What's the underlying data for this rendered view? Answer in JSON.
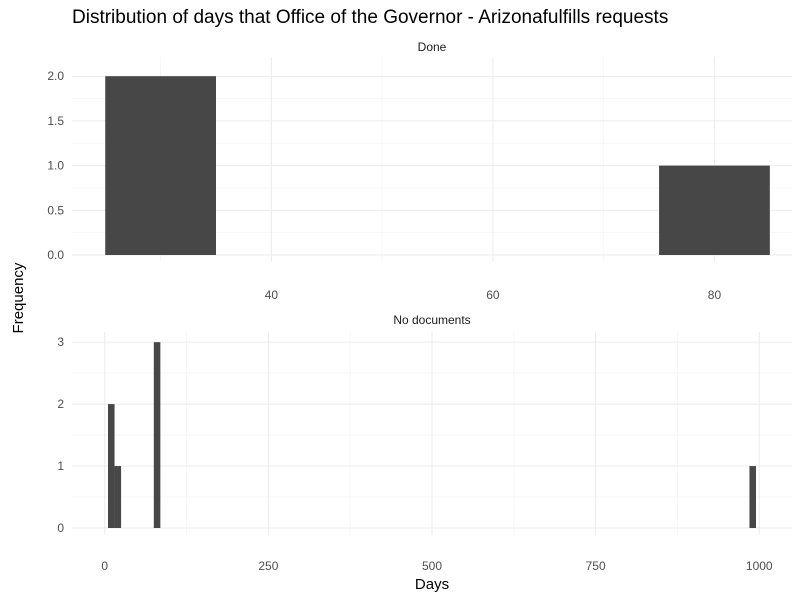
{
  "chart_data": {
    "type": "bar",
    "title": "Distribution of days that Office of the Governor - Arizonafulfills requests",
    "xlabel": "Days",
    "ylabel": "Frequency",
    "grid": true,
    "colors": {
      "bar": "#474747",
      "grid_major": "#ebebeb",
      "grid_minor": "#f5f5f5"
    },
    "facets": [
      {
        "label": "Done",
        "xlim": [
          22,
          87
        ],
        "ylim": [
          0,
          2.1
        ],
        "x_ticks": [
          40,
          60,
          80
        ],
        "x_tick_labels": [
          "40",
          "60",
          "80"
        ],
        "y_ticks": [
          0,
          0.5,
          1,
          1.5,
          2
        ],
        "y_tick_labels": [
          "0.0",
          "0.5",
          "1.0",
          "1.5",
          "2.0"
        ],
        "bins": [
          {
            "x_start": 25,
            "x_end": 35,
            "count": 2
          },
          {
            "x_start": 75,
            "x_end": 85,
            "count": 1
          }
        ]
      },
      {
        "label": "No documents",
        "xlim": [
          -50,
          1050
        ],
        "ylim": [
          0,
          3
        ],
        "x_ticks": [
          0,
          250,
          500,
          750,
          1000
        ],
        "x_tick_labels": [
          "0",
          "250",
          "500",
          "750",
          "1000"
        ],
        "y_ticks": [
          0,
          1,
          2,
          3
        ],
        "y_tick_labels": [
          "0",
          "1",
          "2",
          "3"
        ],
        "bins": [
          {
            "x_start": 5,
            "x_end": 15,
            "count": 2
          },
          {
            "x_start": 15,
            "x_end": 25,
            "count": 1
          },
          {
            "x_start": 75,
            "x_end": 85,
            "count": 3
          },
          {
            "x_start": 985,
            "x_end": 995,
            "count": 1
          }
        ]
      }
    ]
  }
}
